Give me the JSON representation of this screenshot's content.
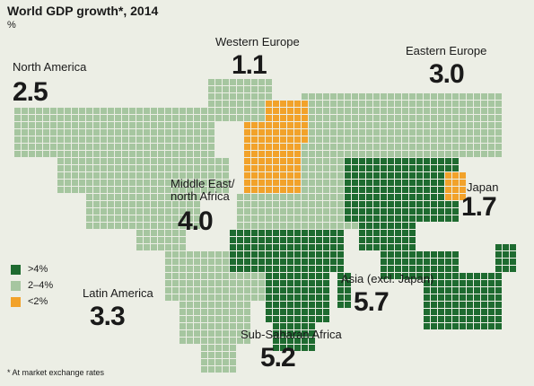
{
  "title": "World GDP growth*, 2014",
  "unit": "%",
  "regions": [
    {
      "name": "North America",
      "value": "2.5"
    },
    {
      "name": "Western Europe",
      "value": "1.1"
    },
    {
      "name": "Eastern Europe",
      "value": "3.0"
    },
    {
      "name": "Middle East/ north Africa",
      "value": "4.0"
    },
    {
      "name": "Japan",
      "value": "1.7"
    },
    {
      "name": "Latin America",
      "value": "3.3"
    },
    {
      "name": "Asia (excl. Japan)",
      "value": "5.7"
    },
    {
      "name": "Sub-Saharan Africa",
      "value": "5.2"
    }
  ],
  "legend": [
    {
      "label": ">4%",
      "color": "#1e6b30"
    },
    {
      "label": "2–4%",
      "color": "#a6c6a0"
    },
    {
      "label": "<2%",
      "color": "#f2a22a"
    }
  ],
  "footnote": "* At market exchange rates"
}
